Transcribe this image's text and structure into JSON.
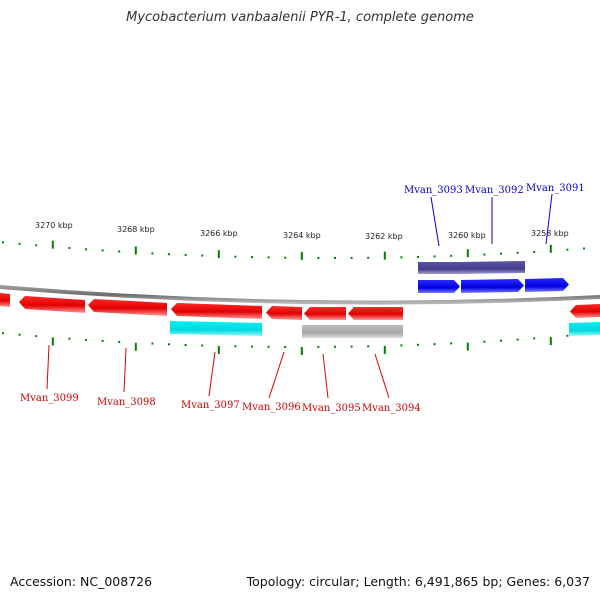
{
  "title": "Mycobacterium vanbaalenii PYR-1, complete genome",
  "footer": {
    "accession": "Accession: NC_008726",
    "stats": "Topology: circular; Length: 6,491,865 bp; Genes: 6,037"
  },
  "colors": {
    "forward_cds": "#0000ee",
    "forward_rna": "#4a4499",
    "reverse_cds": "#ee0000",
    "reverse_rna": "#00e5ee",
    "reverse_other": "#aaaaaa",
    "backbone": "#7a7a7a",
    "ticks": "#008000"
  },
  "scale_labels": [
    "3270 kbp",
    "3268 kbp",
    "3266 kbp",
    "3264 kbp",
    "3262 kbp",
    "3260 kbp",
    "3258 kbp"
  ],
  "forward_labels": [
    "Mvan_3093",
    "Mvan_3092",
    "Mvan_3091"
  ],
  "reverse_labels": [
    "Mvan_3099",
    "Mvan_3098",
    "Mvan_3097",
    "Mvan_3096",
    "Mvan_3095",
    "Mvan_3094"
  ]
}
